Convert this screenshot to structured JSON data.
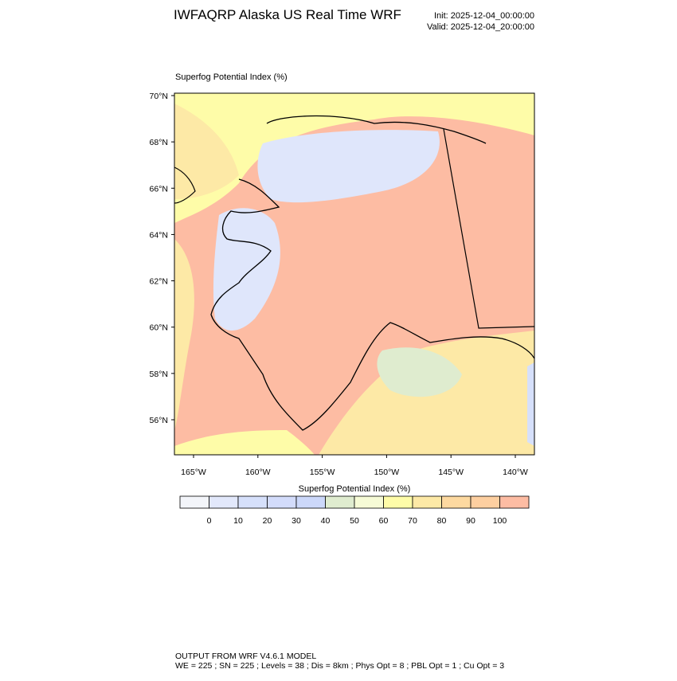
{
  "header": {
    "title": "IWFAQRP Alaska US Real Time WRF",
    "init": "Init: 2025-12-04_00:00:00",
    "valid": "Valid: 2025-12-04_20:00:00"
  },
  "map": {
    "subtitle": "Superfog Potential Index   (%)",
    "lat_labels": [
      {
        "value": 70,
        "label": "70°N"
      },
      {
        "value": 68,
        "label": "68°N"
      },
      {
        "value": 66,
        "label": "66°N"
      },
      {
        "value": 64,
        "label": "64°N"
      },
      {
        "value": 62,
        "label": "62°N"
      },
      {
        "value": 60,
        "label": "60°N"
      },
      {
        "value": 58,
        "label": "58°N"
      },
      {
        "value": 56,
        "label": "56°N"
      }
    ],
    "lon_labels": [
      {
        "value": -165,
        "label": "165°W"
      },
      {
        "value": -160,
        "label": "160°W"
      },
      {
        "value": -155,
        "label": "155°W"
      },
      {
        "value": -150,
        "label": "150°W"
      },
      {
        "value": -145,
        "label": "145°W"
      },
      {
        "value": -140,
        "label": "140°W"
      }
    ]
  },
  "colorbar": {
    "title": "Superfog Potential Index  (%)",
    "levels": [
      0,
      10,
      20,
      30,
      40,
      50,
      60,
      70,
      80,
      90,
      100
    ],
    "colors": [
      "#f3f5fa",
      "#e2e8fb",
      "#d6e0fb",
      "#d3dcfb",
      "#ccd8fa",
      "#dfeccf",
      "#f6fbd6",
      "#fefca8",
      "#fde9a6",
      "#fdd9a0",
      "#fdcfa0",
      "#fdbca3"
    ]
  },
  "footer": {
    "line1": "OUTPUT FROM WRF V4.6.1 MODEL",
    "line2": "WE = 225 ; SN = 225 ; Levels = 38 ; Dis = 8km ; Phys Opt = 8 ; PBL Opt = 1 ; Cu Opt = 3"
  }
}
